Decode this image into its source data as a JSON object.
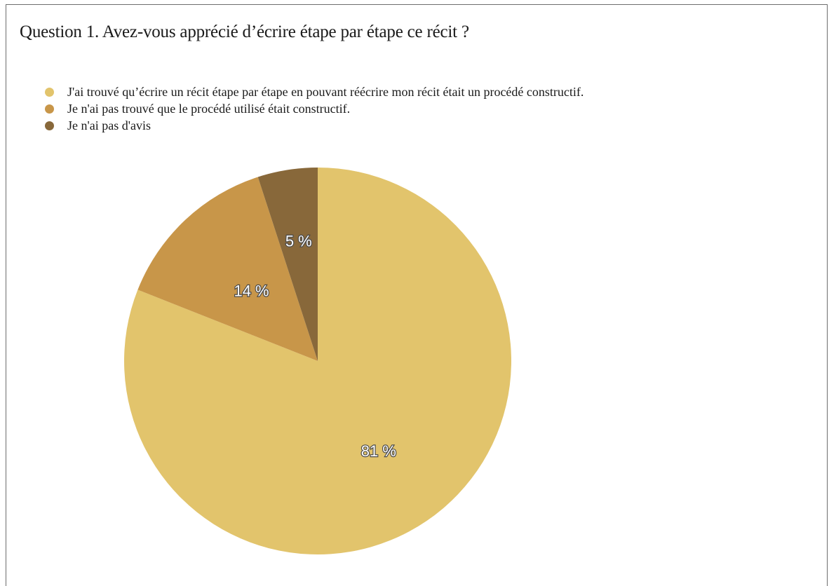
{
  "chart_data": {
    "type": "pie",
    "title": "Question 1. Avez-vous apprécié d’écrire étape par étape ce récit ?",
    "legend_placement": "top-left",
    "slices": [
      {
        "name": "J'ai trouvé qu’écrire un récit étape par étape en pouvant réécrire mon récit était un procédé constructif.",
        "value": 81,
        "label": "81 %",
        "color": "#e2c46c"
      },
      {
        "name": "Je n'ai pas trouvé que le procédé utilisé était constructif.",
        "value": 14,
        "label": "14 %",
        "color": "#c89649"
      },
      {
        "name": "Je n'ai pas d'avis",
        "value": 5,
        "label": "5 %",
        "color": "#88683a"
      }
    ]
  }
}
